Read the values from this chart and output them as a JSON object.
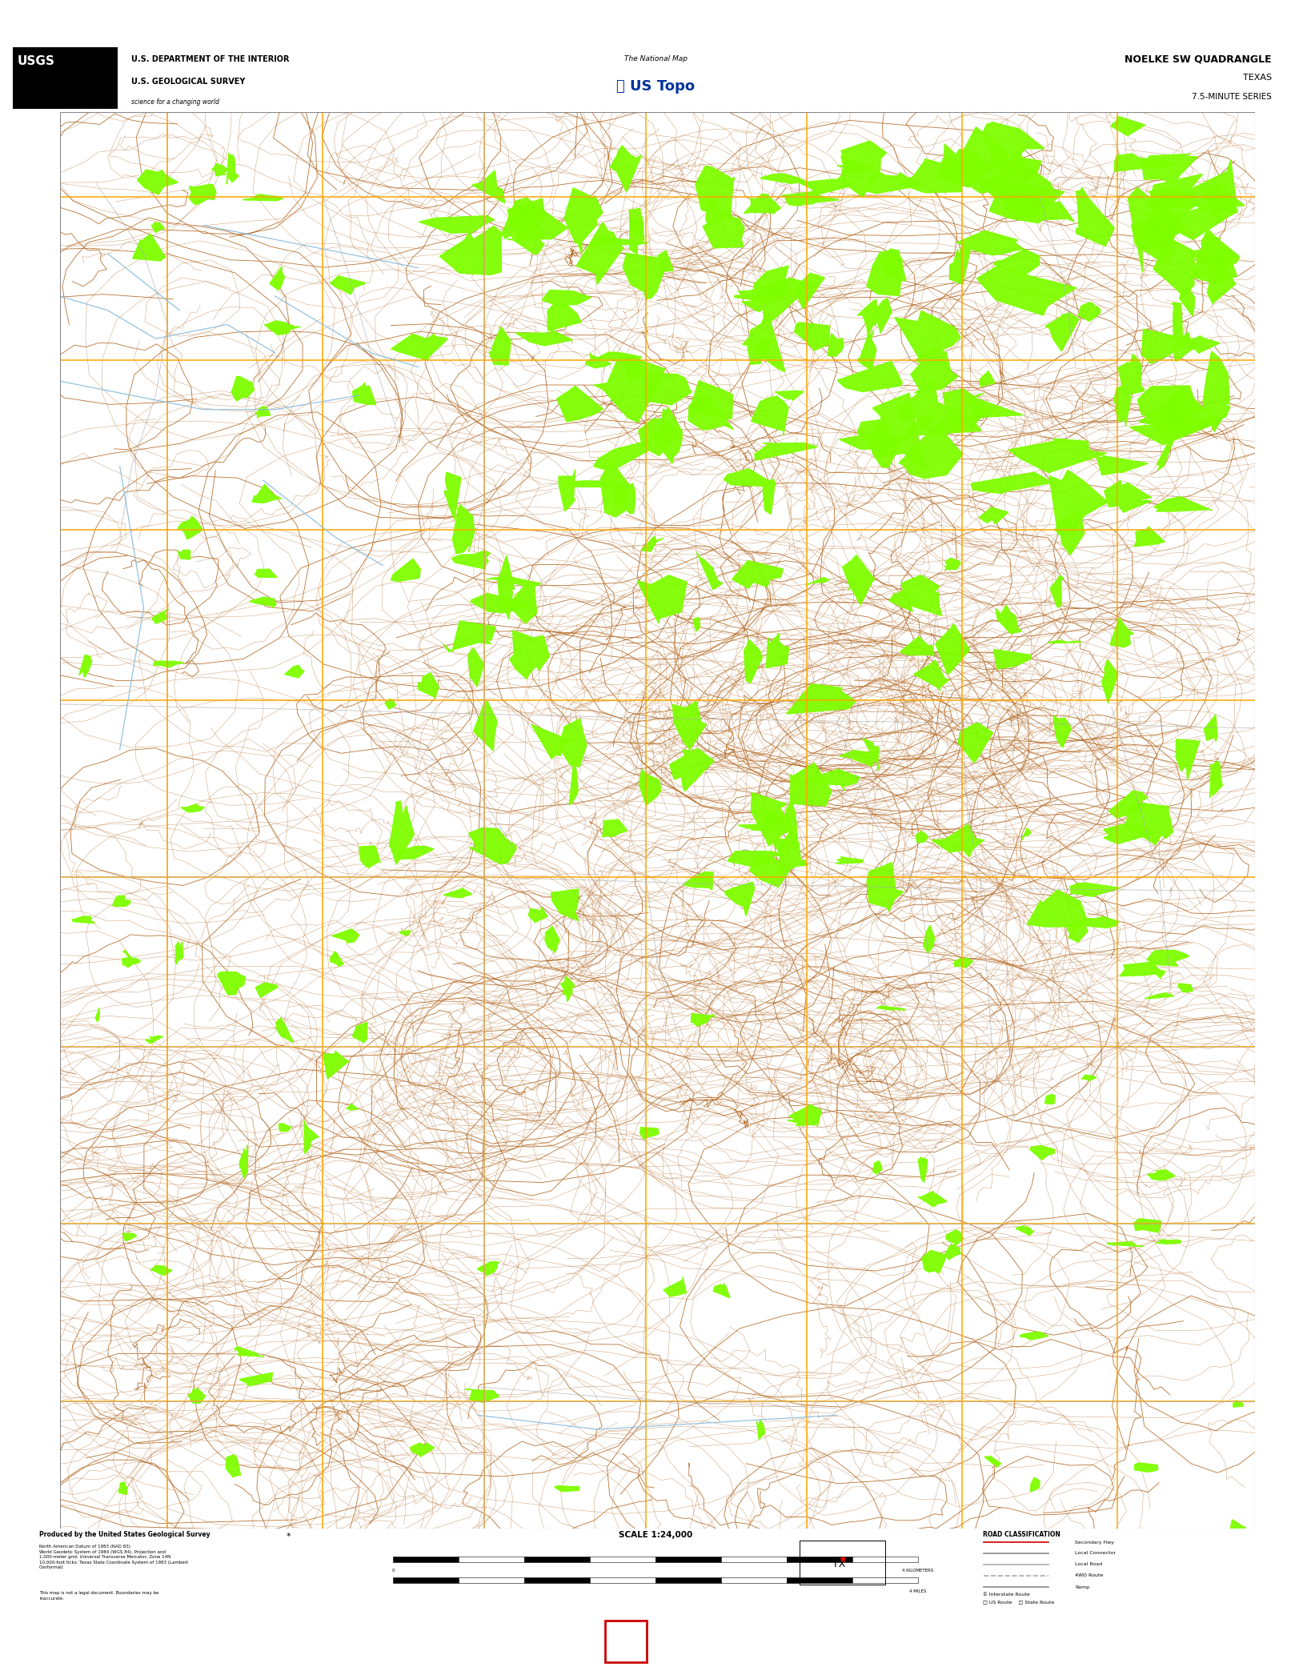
{
  "title": "NOELKE SW QUADRANGLE",
  "subtitle1": "TEXAS",
  "subtitle2": "7.5-MINUTE SERIES",
  "header_left_line1": "U.S. DEPARTMENT OF THE INTERIOR",
  "header_left_line2": "U.S. GEOLOGICAL SURVEY",
  "scale_text": "SCALE 1:24,000",
  "map_bg_color": "#000000",
  "outer_bg_color": "#ffffff",
  "contour_color": "#b87333",
  "grid_color": "#ffa500",
  "veg_color": "#7fff00",
  "water_color": "#6699cc",
  "road_color": "#aaaaaa",
  "header_bg": "#ffffff",
  "footer_bg": "#ffffff",
  "bottom_bar_color": "#111111",
  "red_box_color": "#cc0000",
  "border_color": "#ffffff"
}
